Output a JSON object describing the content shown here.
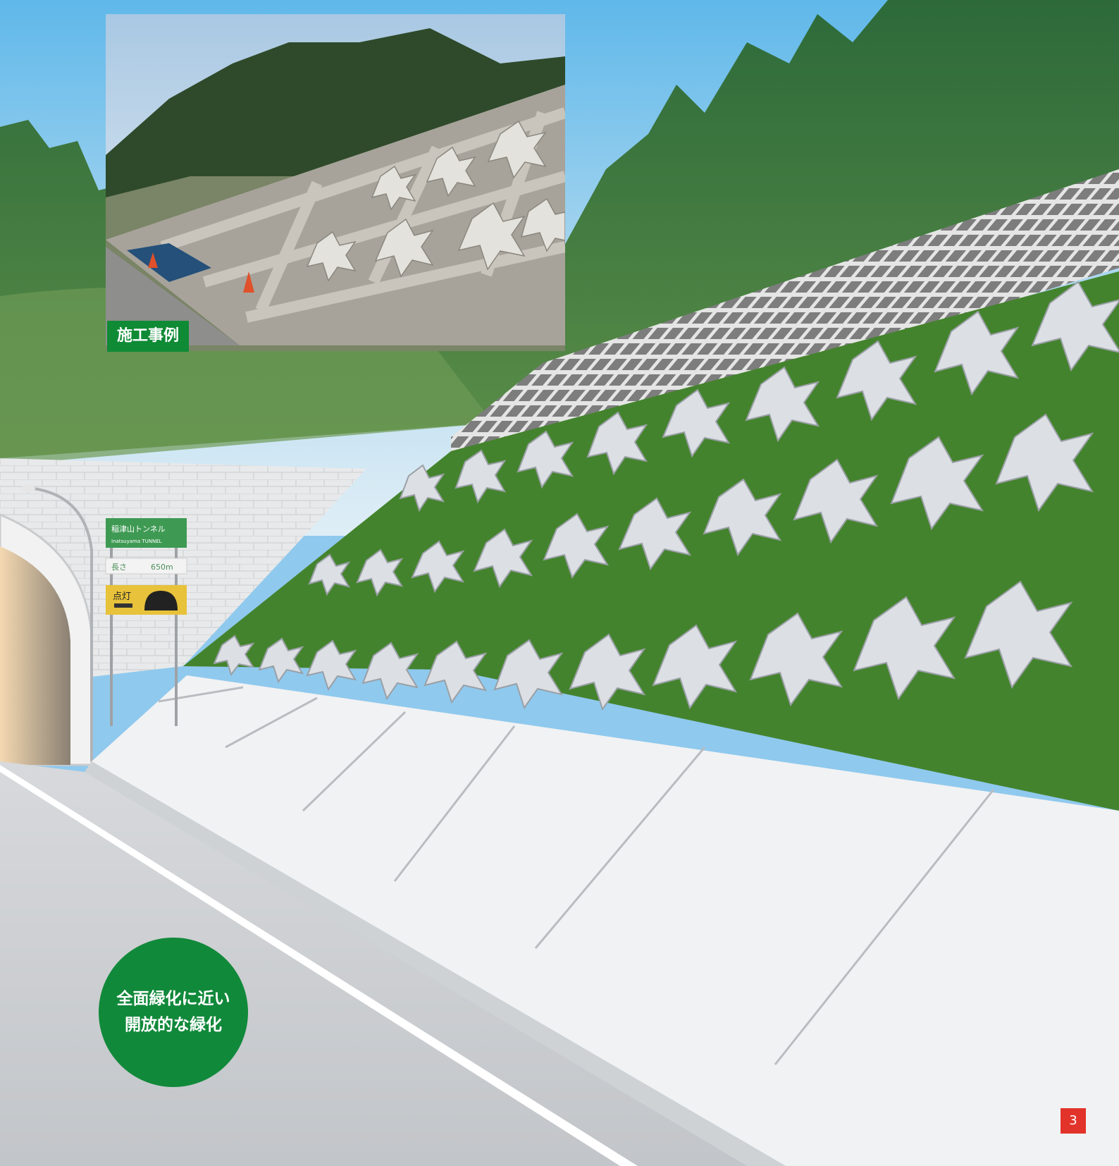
{
  "inset": {
    "label": "施工事例"
  },
  "tunnel_sign": {
    "name": "稲津山トンネル",
    "name_roman": "Inatsuyama TUNNEL",
    "length_label": "長さ",
    "length_value": "650m",
    "lights_label": "点灯"
  },
  "callout": {
    "line1": "全面緑化に近い",
    "line2": "開放的な緑化"
  },
  "page": {
    "number": "3"
  },
  "colors": {
    "brand_green": "#0f8a35",
    "page_badge": "#e2332a",
    "grass": "#3f7f2a"
  }
}
